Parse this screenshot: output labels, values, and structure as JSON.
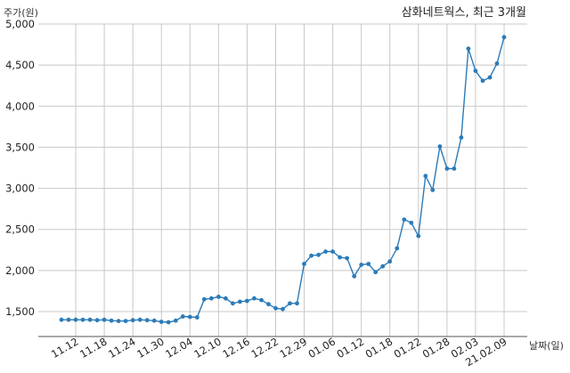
{
  "chart_data": {
    "type": "line",
    "title": "삼화네트웍스, 최근 3개월",
    "ylabel": "주가(원)",
    "xlabel": "날짜(일)",
    "ylim": [
      1250,
      5000
    ],
    "grid": true,
    "series_color": "#2b7bb9",
    "y_ticks": [
      1500,
      2000,
      2500,
      3000,
      3500,
      4000,
      4500,
      5000
    ],
    "y_tick_labels": [
      "1,500",
      "2,000",
      "2,500",
      "3,000",
      "3,500",
      "4,000",
      "4,500",
      "5,000"
    ],
    "x_tick_labels": [
      "11.12",
      "11.18",
      "11.24",
      "11.30",
      "12.04",
      "12.10",
      "12.16",
      "12.22",
      "12.29",
      "01.06",
      "01.12",
      "01.18",
      "01.22",
      "01.28",
      "02.03",
      "21.02.09"
    ],
    "x_tick_indices": [
      2,
      6,
      10,
      14,
      18,
      22,
      26,
      30,
      34,
      38,
      42,
      46,
      50,
      54,
      58,
      62
    ],
    "series": [
      {
        "values": [
          1400,
          1400,
          1400,
          1400,
          1400,
          1395,
          1400,
          1390,
          1385,
          1385,
          1395,
          1400,
          1395,
          1390,
          1375,
          1370,
          1390,
          1440,
          1435,
          1430,
          1650,
          1660,
          1680,
          1660,
          1600,
          1620,
          1630,
          1660,
          1640,
          1590,
          1540,
          1530,
          1600,
          1600,
          2080,
          2180,
          2190,
          2230,
          2230,
          2160,
          2150,
          1930,
          2070,
          2080,
          1980,
          2050,
          2110,
          2270,
          2620,
          2580,
          2420,
          3150,
          2980,
          3510,
          3240,
          3240,
          3620,
          4700,
          4430,
          4310,
          4350,
          4520,
          4840
        ]
      }
    ]
  }
}
